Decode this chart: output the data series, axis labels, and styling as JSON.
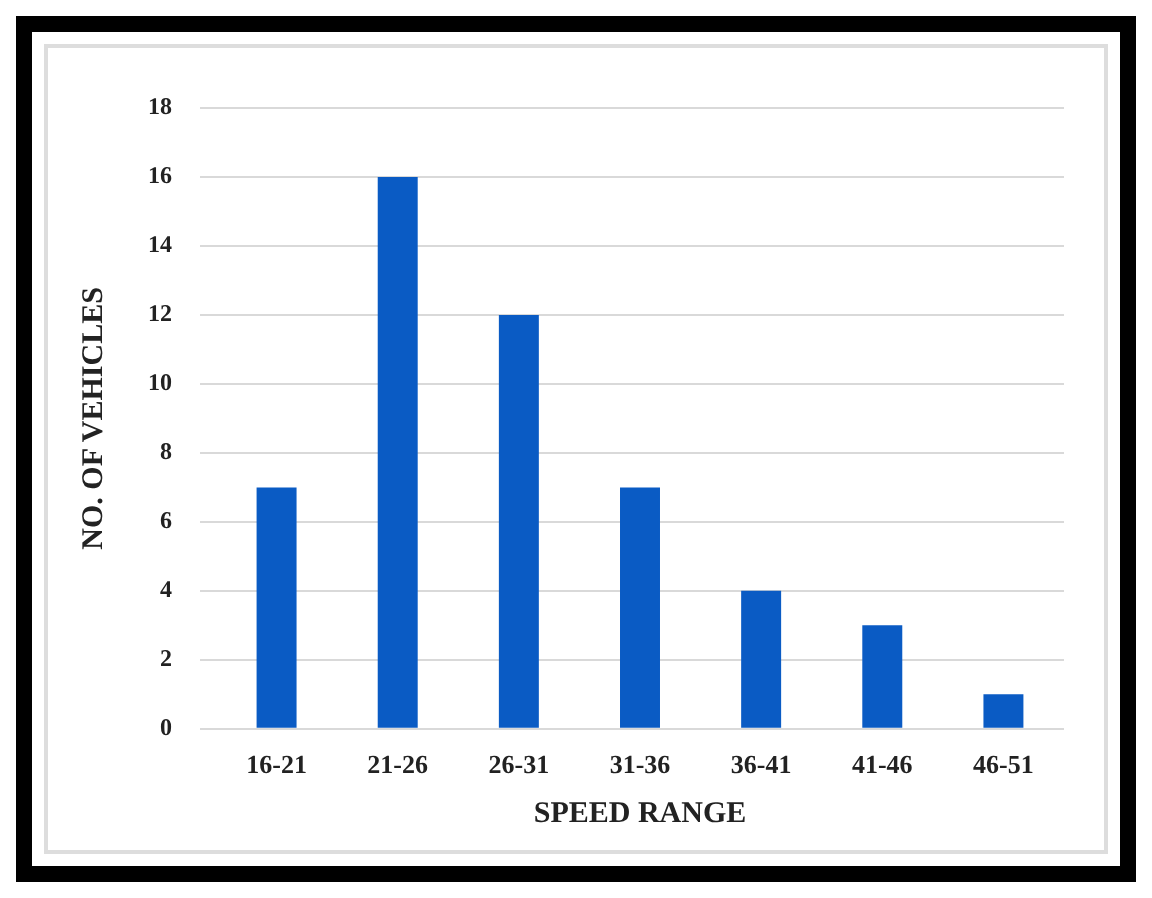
{
  "chart_data": {
    "type": "bar",
    "xlabel": "SPEED RANGE",
    "ylabel": "NO. OF VEHICLES",
    "categories": [
      "16-21",
      "21-26",
      "26-31",
      "31-36",
      "36-41",
      "41-46",
      "46-51"
    ],
    "values": [
      7,
      16,
      12,
      7,
      4,
      3,
      1
    ],
    "color": "#0a5bc4",
    "ylim": [
      0,
      18
    ],
    "yticks": [
      0,
      2,
      4,
      6,
      8,
      10,
      12,
      14,
      16,
      18
    ],
    "grid": "y"
  }
}
